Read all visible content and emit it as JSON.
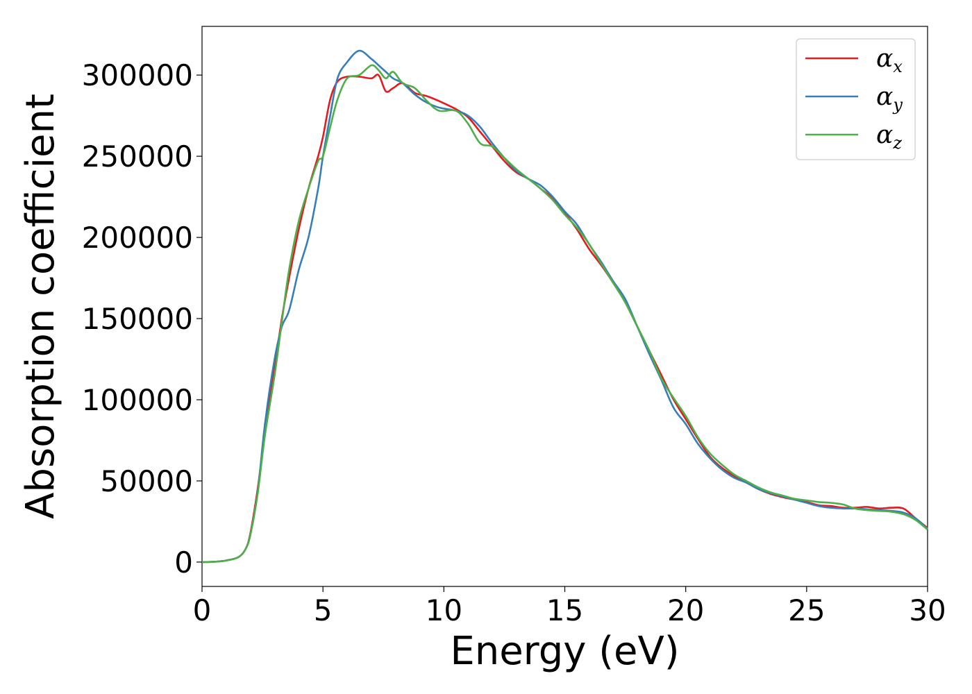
{
  "chart_data": {
    "type": "line",
    "title": "",
    "xlabel": "Energy (eV)",
    "ylabel": "Absorption coefficient",
    "xlim": [
      0,
      30
    ],
    "ylim": [
      -15000,
      330000
    ],
    "xticks": [
      0,
      5,
      10,
      15,
      20,
      25,
      30
    ],
    "yticks": [
      0,
      50000,
      100000,
      150000,
      200000,
      250000,
      300000
    ],
    "grid": false,
    "legend_position": "top-right",
    "series": [
      {
        "name": "α",
        "name_sub": "x",
        "color": "#e41a1c",
        "x": [
          0,
          0.5,
          1,
          1.5,
          1.8,
          2,
          2.3,
          2.6,
          3,
          3.3,
          3.6,
          4,
          4.4,
          4.8,
          5,
          5.3,
          5.6,
          6,
          6.5,
          7,
          7.3,
          7.6,
          7.9,
          8.3,
          8.8,
          9.3,
          9.8,
          10.5,
          11,
          11.5,
          12,
          12.5,
          13,
          13.5,
          14,
          14.5,
          15,
          15.5,
          16,
          16.5,
          17,
          17.5,
          18,
          18.5,
          19,
          19.5,
          20,
          20.5,
          21,
          21.5,
          22,
          22.5,
          23,
          23.5,
          24,
          24.5,
          25,
          25.5,
          26,
          26.5,
          27,
          27.5,
          28,
          28.5,
          29,
          29.5,
          30
        ],
        "y": [
          0,
          200,
          1000,
          3000,
          8000,
          18000,
          45000,
          80000,
          120000,
          150000,
          175000,
          205000,
          230000,
          250000,
          262000,
          285000,
          296000,
          299000,
          299000,
          298000,
          300000,
          290000,
          292000,
          295000,
          289000,
          287000,
          284000,
          279000,
          274000,
          265000,
          256000,
          247000,
          240000,
          236000,
          230000,
          224000,
          215000,
          205000,
          193000,
          183000,
          172000,
          160000,
          145000,
          130000,
          115000,
          100000,
          88000,
          76000,
          65000,
          58000,
          53000,
          49000,
          45000,
          42000,
          40000,
          38500,
          37000,
          35000,
          34500,
          33500,
          33500,
          34000,
          33000,
          33500,
          33000,
          27000,
          21000
        ]
      },
      {
        "name": "α",
        "name_sub": "y",
        "color": "#377eb8",
        "x": [
          0,
          0.5,
          1,
          1.5,
          1.8,
          2,
          2.3,
          2.6,
          3,
          3.3,
          3.6,
          4,
          4.4,
          4.8,
          5,
          5.3,
          5.6,
          6,
          6.5,
          7,
          7.3,
          7.6,
          7.9,
          8.3,
          8.8,
          9.3,
          9.8,
          10.5,
          11,
          11.5,
          12,
          12.5,
          13,
          13.5,
          14,
          14.5,
          15,
          15.5,
          16,
          16.5,
          17,
          17.5,
          18,
          18.5,
          19,
          19.5,
          20,
          20.5,
          21,
          21.5,
          22,
          22.5,
          23,
          23.5,
          24,
          24.5,
          25,
          25.5,
          26,
          26.5,
          27,
          27.5,
          28,
          28.5,
          29,
          29.5,
          30
        ],
        "y": [
          0,
          200,
          1000,
          3000,
          8000,
          17000,
          43000,
          85000,
          125000,
          145000,
          155000,
          180000,
          200000,
          230000,
          250000,
          275000,
          298000,
          308000,
          315000,
          310000,
          306000,
          302000,
          298000,
          295000,
          288000,
          283000,
          280000,
          278000,
          275000,
          268000,
          258000,
          249000,
          241000,
          236000,
          232000,
          225000,
          216000,
          208000,
          196000,
          185000,
          173000,
          162000,
          145000,
          128000,
          112000,
          95000,
          85000,
          73000,
          64000,
          57000,
          52000,
          49000,
          45000,
          42500,
          40500,
          38500,
          36500,
          34500,
          33500,
          33000,
          33000,
          32500,
          32000,
          31500,
          30500,
          27000,
          20500
        ]
      },
      {
        "name": "α",
        "name_sub": "z",
        "color": "#4daf4a",
        "x": [
          0,
          0.5,
          1,
          1.5,
          1.8,
          2,
          2.3,
          2.6,
          3,
          3.3,
          3.6,
          4,
          4.4,
          4.8,
          5,
          5.3,
          5.6,
          6,
          6.5,
          7,
          7.3,
          7.6,
          7.9,
          8.3,
          8.8,
          9.3,
          9.8,
          10.5,
          11,
          11.5,
          12,
          12.5,
          13,
          13.5,
          14,
          14.5,
          15,
          15.5,
          16,
          16.5,
          17,
          17.5,
          18,
          18.5,
          19,
          19.5,
          20,
          20.5,
          21,
          21.5,
          22,
          22.5,
          23,
          23.5,
          24,
          24.5,
          25,
          25.5,
          26,
          26.5,
          27,
          27.5,
          28,
          28.5,
          29,
          29.5,
          30
        ],
        "y": [
          0,
          200,
          1000,
          3000,
          8000,
          17000,
          42000,
          78000,
          115000,
          148000,
          180000,
          210000,
          230000,
          247000,
          250000,
          268000,
          285000,
          298000,
          300000,
          306000,
          303000,
          298000,
          302000,
          295000,
          292000,
          284000,
          278000,
          278000,
          270000,
          258000,
          256000,
          249000,
          242000,
          236000,
          230000,
          223000,
          214000,
          206000,
          196000,
          184000,
          172000,
          160000,
          145000,
          130000,
          113000,
          101000,
          90000,
          77000,
          67000,
          60000,
          54000,
          50000,
          46000,
          43000,
          41000,
          39000,
          38000,
          37000,
          36500,
          35500,
          33000,
          32000,
          31500,
          31000,
          29500,
          26000,
          20000
        ]
      }
    ]
  }
}
